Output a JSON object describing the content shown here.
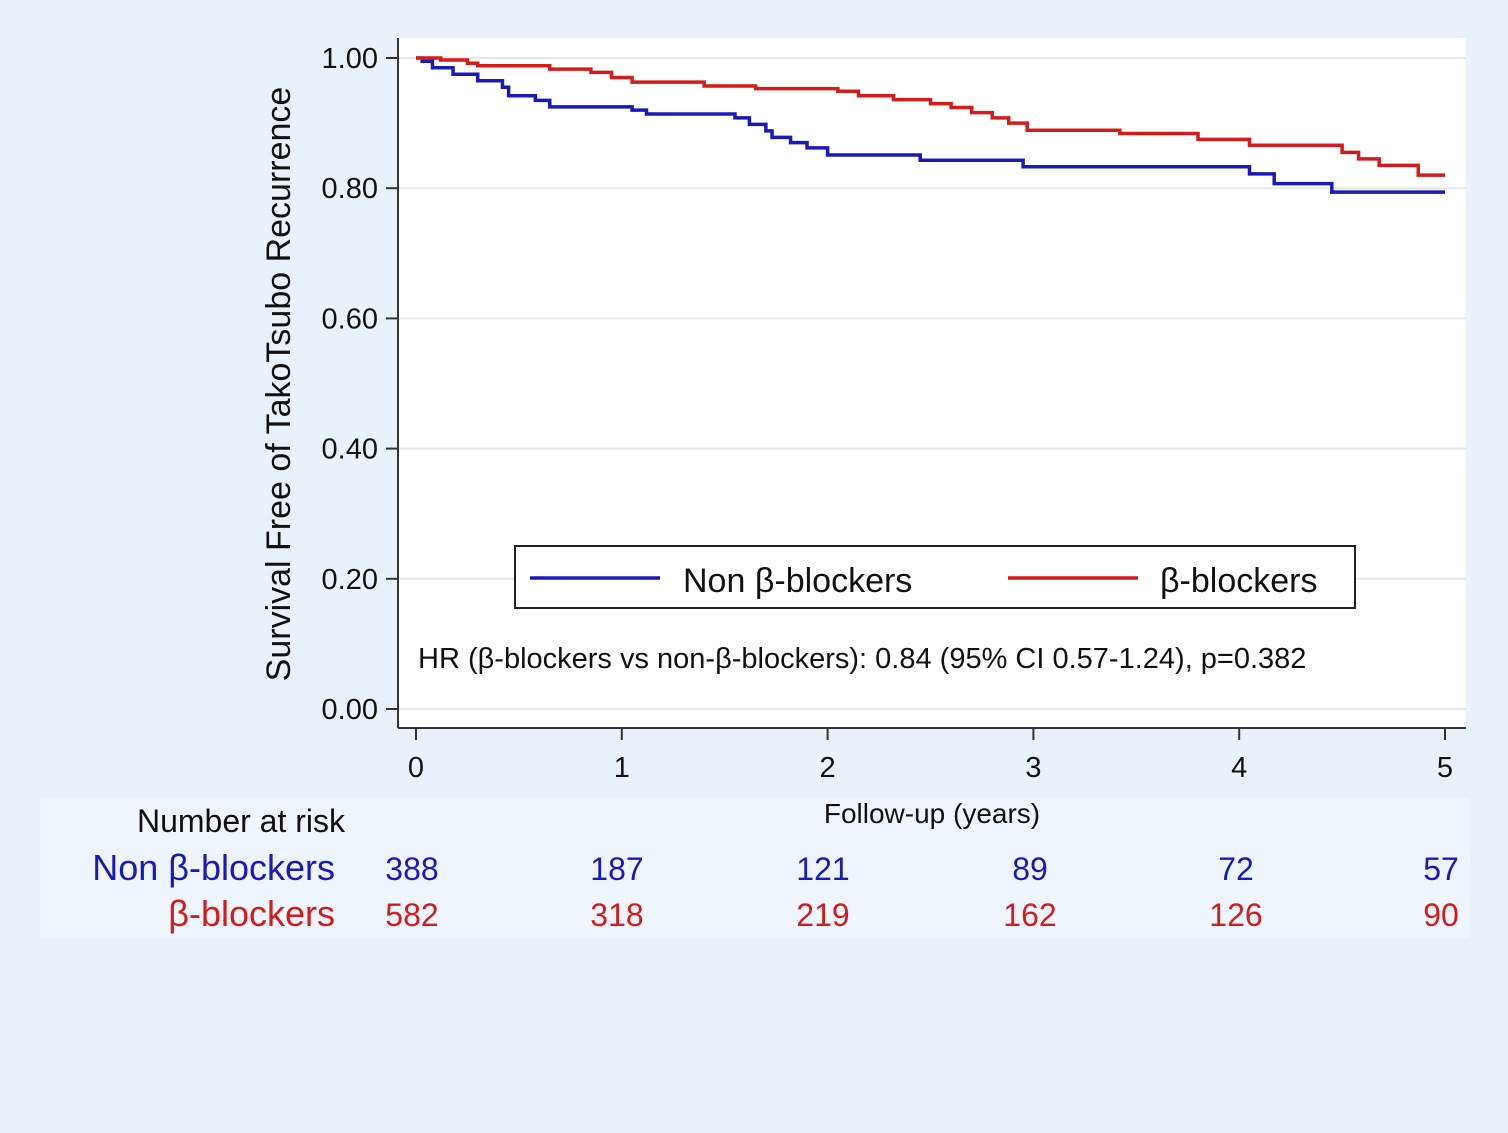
{
  "chart_data": {
    "type": "line",
    "subtype": "kaplan-meier-step",
    "title": "",
    "xlabel": "Follow-up (years)",
    "ylabel": "Survival Free of TakoTsubo Recurrence",
    "xlim": [
      0,
      5
    ],
    "ylim": [
      0,
      1
    ],
    "x_ticks": [
      "0",
      "1",
      "2",
      "3",
      "4",
      "5"
    ],
    "y_ticks": [
      "0.00",
      "0.20",
      "0.40",
      "0.60",
      "0.80",
      "1.00"
    ],
    "grid": "horizontal",
    "legend_placement": "bottom-center",
    "annotation": "HR (β-blockers vs non-β-blockers): 0.84 (95% CI 0.57-1.24), p=0.382",
    "series": [
      {
        "name": "Non β-blockers",
        "color": "#1a1ab8",
        "steps": [
          [
            0,
            1.0
          ],
          [
            0.03,
            0.995
          ],
          [
            0.08,
            0.985
          ],
          [
            0.18,
            0.975
          ],
          [
            0.3,
            0.965
          ],
          [
            0.42,
            0.955
          ],
          [
            0.45,
            0.942
          ],
          [
            0.58,
            0.935
          ],
          [
            0.65,
            0.925
          ],
          [
            1.05,
            0.92
          ],
          [
            1.12,
            0.914
          ],
          [
            1.55,
            0.908
          ],
          [
            1.62,
            0.898
          ],
          [
            1.7,
            0.888
          ],
          [
            1.73,
            0.878
          ],
          [
            1.82,
            0.87
          ],
          [
            1.9,
            0.862
          ],
          [
            2.0,
            0.851
          ],
          [
            2.45,
            0.843
          ],
          [
            2.95,
            0.833
          ],
          [
            4.05,
            0.822
          ],
          [
            4.17,
            0.807
          ],
          [
            4.45,
            0.794
          ],
          [
            5.0,
            0.794
          ]
        ]
      },
      {
        "name": "β-blockers",
        "color": "#d41c1c",
        "steps": [
          [
            0,
            1.0
          ],
          [
            0.12,
            0.997
          ],
          [
            0.25,
            0.992
          ],
          [
            0.3,
            0.988
          ],
          [
            0.65,
            0.983
          ],
          [
            0.85,
            0.978
          ],
          [
            0.95,
            0.97
          ],
          [
            1.05,
            0.963
          ],
          [
            1.4,
            0.957
          ],
          [
            1.65,
            0.953
          ],
          [
            2.05,
            0.949
          ],
          [
            2.15,
            0.942
          ],
          [
            2.32,
            0.936
          ],
          [
            2.5,
            0.93
          ],
          [
            2.6,
            0.924
          ],
          [
            2.7,
            0.916
          ],
          [
            2.8,
            0.908
          ],
          [
            2.88,
            0.9
          ],
          [
            2.97,
            0.889
          ],
          [
            3.42,
            0.884
          ],
          [
            3.8,
            0.875
          ],
          [
            4.05,
            0.866
          ],
          [
            4.5,
            0.855
          ],
          [
            4.58,
            0.845
          ],
          [
            4.68,
            0.835
          ],
          [
            4.87,
            0.82
          ],
          [
            5.0,
            0.82
          ]
        ]
      }
    ],
    "risk_table": {
      "title": "Number at risk",
      "rows": [
        {
          "label": "Non β-blockers",
          "color": "#1a1ab8",
          "values": [
            "388",
            "187",
            "121",
            "89",
            "72",
            "57"
          ]
        },
        {
          "label": "β-blockers",
          "color": "#d41c1c",
          "values": [
            "582",
            "318",
            "219",
            "162",
            "126",
            "90"
          ]
        }
      ]
    }
  }
}
